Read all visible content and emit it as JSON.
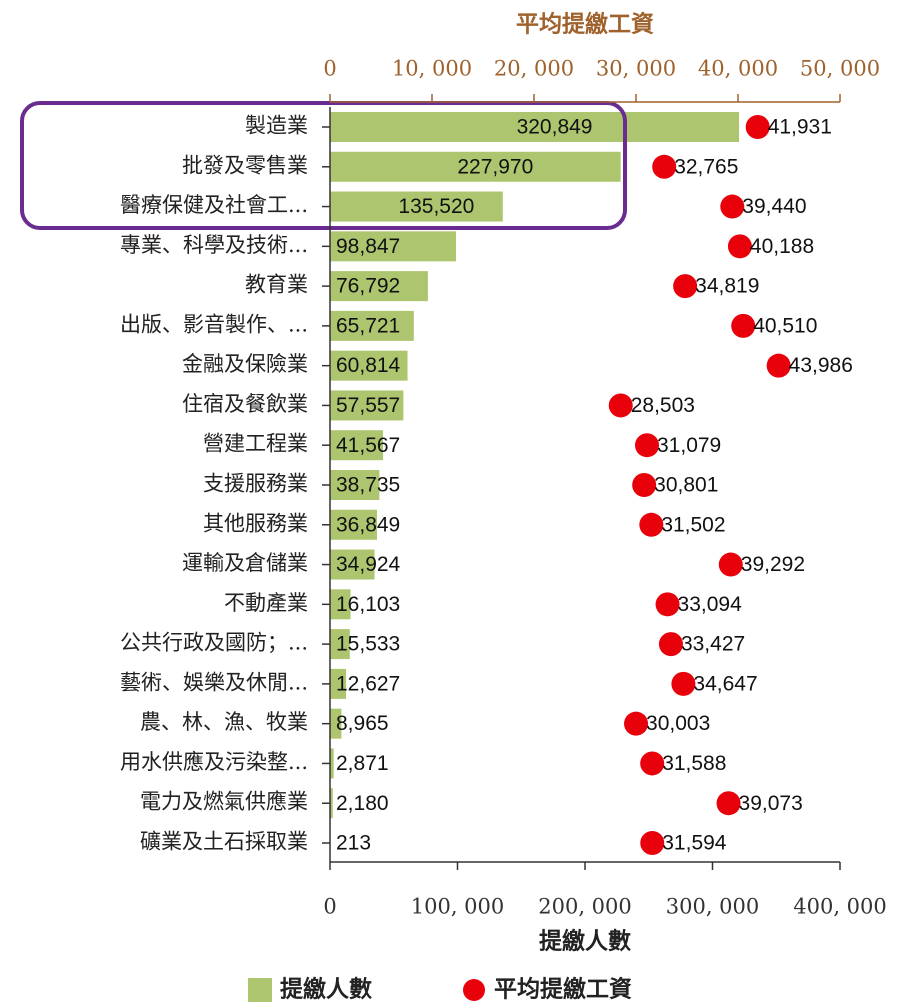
{
  "chart_data": {
    "type": "bar",
    "orientation": "horizontal",
    "x_label": "提繳人數",
    "x2_label": "平均提繳工資",
    "categories": [
      "製造業",
      "批發及零售業",
      "醫療保健及社會工...",
      "專業、科學及技術...",
      "教育業",
      "出版、影音製作、...",
      "金融及保險業",
      "住宿及餐飲業",
      "營建工程業",
      "支援服務業",
      "其他服務業",
      "運輸及倉儲業",
      "不動產業",
      "公共行政及國防；...",
      "藝術、娛樂及休閒...",
      "農、林、漁、牧業",
      "用水供應及污染整...",
      "電力及燃氣供應業",
      "礦業及土石採取業"
    ],
    "series": [
      {
        "name": "提繳人數",
        "color": "#adc56f",
        "axis": "x",
        "values": [
          320849,
          227970,
          135520,
          98847,
          76792,
          65721,
          60814,
          57557,
          41567,
          38735,
          36849,
          34924,
          16103,
          15533,
          12627,
          8965,
          2871,
          2180,
          213
        ],
        "value_labels": [
          "320,849",
          "227,970",
          "135,520",
          "98,847",
          "76,792",
          "65,721",
          "60,814",
          "57,557",
          "41,567",
          "38,735",
          "36,849",
          "34,924",
          "16,103",
          "15,533",
          "12,627",
          "8,965",
          "2,871",
          "2,180",
          "213"
        ]
      },
      {
        "name": "平均提繳工資",
        "color": "#e8000b",
        "axis": "x2",
        "values": [
          41931,
          32765,
          39440,
          40188,
          34819,
          40510,
          43986,
          28503,
          31079,
          30801,
          31502,
          39292,
          33094,
          33427,
          34647,
          30003,
          31588,
          39073,
          31594
        ],
        "value_labels": [
          "41,931",
          "32,765",
          "39,440",
          "40,188",
          "34,819",
          "40,510",
          "43,986",
          "28,503",
          "31,079",
          "30,801",
          "31,502",
          "39,292",
          "33,094",
          "33,427",
          "34,647",
          "30,003",
          "31,588",
          "39,073",
          "31,594"
        ]
      }
    ],
    "xlim": [
      0,
      400000
    ],
    "xticks": [
      0,
      {
        "value": 100000,
        "label": "100, 000"
      },
      {
        "value": 200000,
        "label": "200, 000"
      },
      {
        "value": 300000,
        "label": "300, 000"
      },
      {
        "value": 400000,
        "label": "400, 000"
      }
    ],
    "x2lim": [
      0,
      50000
    ],
    "x2ticks": [
      0,
      {
        "value": 10000,
        "label": "10, 000"
      },
      {
        "value": 20000,
        "label": "20, 000"
      },
      {
        "value": 30000,
        "label": "30, 000"
      },
      {
        "value": 40000,
        "label": "40, 000"
      },
      {
        "value": 50000,
        "label": "50, 000"
      }
    ]
  }
}
